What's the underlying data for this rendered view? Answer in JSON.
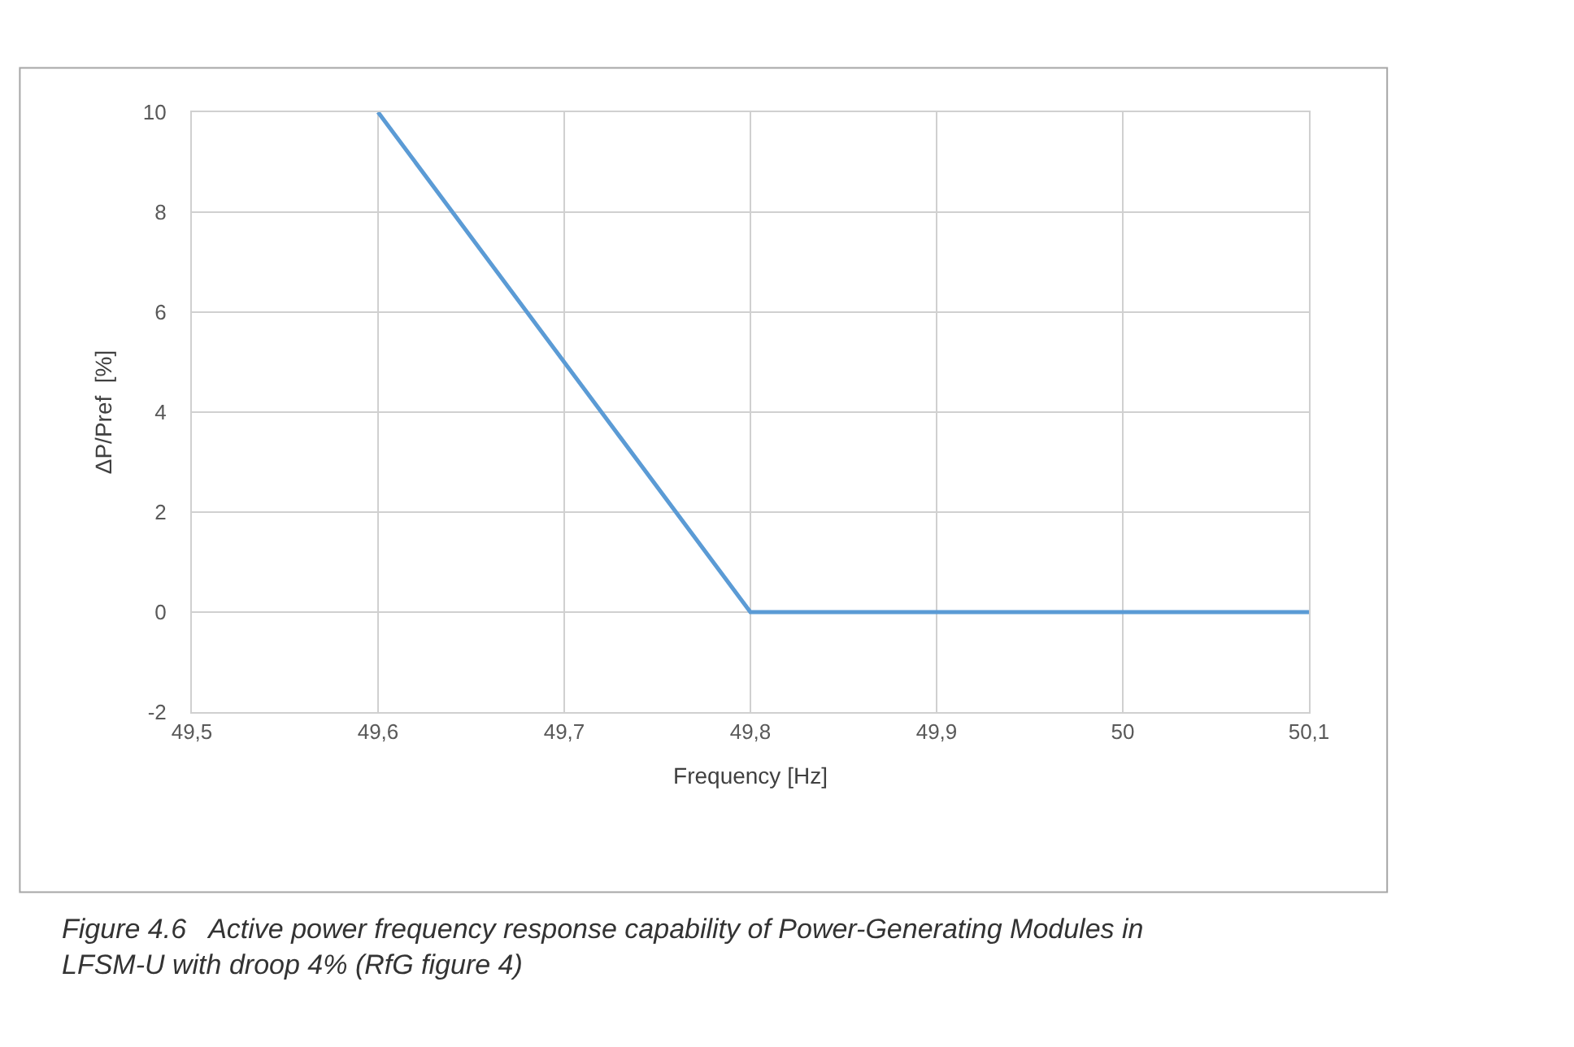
{
  "chart_data": {
    "type": "line",
    "x": [
      49.6,
      49.8,
      50.1
    ],
    "series": [
      {
        "color": "#5b9bd5",
        "values": [
          10,
          0,
          0
        ]
      }
    ],
    "xlabel": "Frequency [Hz]",
    "ylabel": "ΔP/Pref  [%]",
    "xlim": [
      49.5,
      50.1
    ],
    "ylim": [
      -2,
      10
    ],
    "xticks": [
      {
        "value": 49.5,
        "label": "49,5"
      },
      {
        "value": 49.6,
        "label": "49,6"
      },
      {
        "value": 49.7,
        "label": "49,7"
      },
      {
        "value": 49.8,
        "label": "49,8"
      },
      {
        "value": 49.9,
        "label": "49,9"
      },
      50,
      {
        "value": 50.1,
        "label": "50,1"
      }
    ],
    "yticks": [
      -2,
      0,
      2,
      4,
      6,
      8,
      10
    ],
    "grid": true,
    "marker": "none",
    "line_style": "solid",
    "annotations": [
      "Figure 4.6   Active power frequency response capability of Power-Generating Modules in\nLFSM-U with droop 4% (RfG figure 4)"
    ]
  }
}
